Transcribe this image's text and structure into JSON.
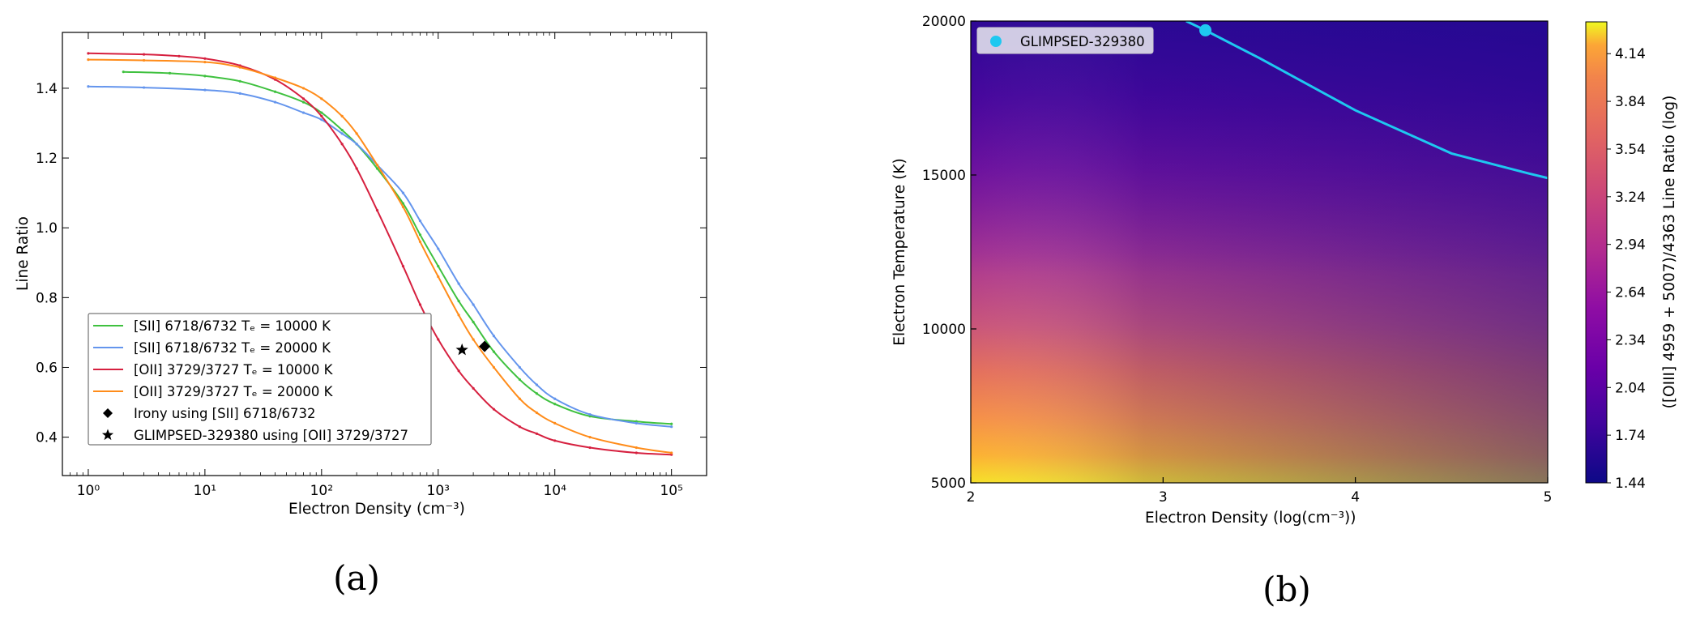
{
  "chart_data": [
    {
      "type": "line",
      "panel_label": "(a)",
      "xlabel": "Electron Density (cm⁻³)",
      "ylabel": "Line Ratio",
      "xscale": "log",
      "xlim": [
        0.6,
        200000
      ],
      "ylim": [
        0.29,
        1.56
      ],
      "x_ticks": [
        1,
        10,
        100,
        1000,
        10000,
        100000
      ],
      "x_tick_labels": [
        "10⁰",
        "10¹",
        "10²",
        "10³",
        "10⁴",
        "10⁵"
      ],
      "y_ticks": [
        0.4,
        0.6,
        0.8,
        1.0,
        1.2,
        1.4
      ],
      "y_tick_labels": [
        "0.4",
        "0.6",
        "0.8",
        "1.0",
        "1.2",
        "1.4"
      ],
      "legend_position": "lower-left",
      "series": [
        {
          "name": "[SII] 6718/6732 Tₑ = 10000 K",
          "color": "#3fc13f",
          "x": [
            2,
            5,
            10,
            20,
            40,
            70,
            100,
            150,
            200,
            300,
            500,
            700,
            1000,
            1500,
            2000,
            3000,
            5000,
            7000,
            10000,
            20000,
            50000,
            100000
          ],
          "y": [
            1.447,
            1.443,
            1.435,
            1.42,
            1.39,
            1.36,
            1.33,
            1.28,
            1.24,
            1.17,
            1.07,
            0.98,
            0.89,
            0.79,
            0.73,
            0.645,
            0.565,
            0.525,
            0.495,
            0.46,
            0.445,
            0.438
          ]
        },
        {
          "name": "[SII] 6718/6732 Tₑ = 20000 K",
          "color": "#6495ed",
          "x": [
            1,
            3,
            10,
            20,
            40,
            70,
            100,
            150,
            200,
            300,
            500,
            700,
            1000,
            1500,
            2000,
            3000,
            5000,
            7000,
            10000,
            20000,
            50000,
            100000
          ],
          "y": [
            1.405,
            1.402,
            1.395,
            1.385,
            1.36,
            1.33,
            1.31,
            1.27,
            1.24,
            1.18,
            1.1,
            1.02,
            0.94,
            0.84,
            0.78,
            0.69,
            0.6,
            0.55,
            0.51,
            0.465,
            0.44,
            0.43
          ]
        },
        {
          "name": "[OII] 3729/3727 Tₑ = 10000 K",
          "color": "#d6203f",
          "x": [
            1,
            3,
            6,
            10,
            20,
            40,
            70,
            100,
            150,
            200,
            300,
            500,
            700,
            1000,
            1500,
            2000,
            3000,
            5000,
            7000,
            10000,
            20000,
            50000,
            100000
          ],
          "y": [
            1.5,
            1.497,
            1.492,
            1.485,
            1.465,
            1.425,
            1.37,
            1.32,
            1.24,
            1.17,
            1.05,
            0.89,
            0.78,
            0.68,
            0.59,
            0.54,
            0.48,
            0.43,
            0.41,
            0.39,
            0.37,
            0.355,
            0.35
          ]
        },
        {
          "name": "[OII] 3729/3727 Tₑ = 20000 K",
          "color": "#ff8c1a",
          "x": [
            1,
            3,
            10,
            20,
            40,
            70,
            100,
            150,
            200,
            300,
            500,
            700,
            1000,
            1500,
            2000,
            3000,
            5000,
            7000,
            10000,
            20000,
            50000,
            100000
          ],
          "y": [
            1.482,
            1.48,
            1.475,
            1.46,
            1.43,
            1.4,
            1.37,
            1.32,
            1.27,
            1.18,
            1.06,
            0.96,
            0.86,
            0.75,
            0.68,
            0.6,
            0.51,
            0.47,
            0.44,
            0.4,
            0.37,
            0.355
          ]
        }
      ],
      "markers": [
        {
          "name": "Irony using [SII] 6718/6732",
          "symbol": "diamond",
          "x": 2500,
          "y": 0.66,
          "color": "#000000"
        },
        {
          "name": "GLIMPSED-329380 using [OII] 3729/3727",
          "symbol": "star",
          "x": 1600,
          "y": 0.65,
          "color": "#000000"
        }
      ]
    },
    {
      "type": "heatmap",
      "panel_label": "(b)",
      "xlabel": "Electron Density (log(cm⁻³))",
      "ylabel": "Electron Temperature (K)",
      "colorbar_label": "([OIII] 4959 + 5007)/4363 Line Ratio (log)",
      "colormap": "plasma",
      "xlim": [
        2,
        5
      ],
      "ylim": [
        5000,
        20000
      ],
      "x_ticks": [
        2,
        3,
        4,
        5
      ],
      "x_tick_labels": [
        "2",
        "3",
        "4",
        "5"
      ],
      "y_ticks": [
        5000,
        10000,
        15000,
        20000
      ],
      "y_tick_labels": [
        "5000",
        "10000",
        "15000",
        "20000"
      ],
      "colorbar_range": [
        1.44,
        4.34
      ],
      "colorbar_ticks": [
        1.44,
        1.74,
        2.04,
        2.34,
        2.64,
        2.94,
        3.24,
        3.54,
        3.84,
        4.14
      ],
      "colorbar_tick_labels": [
        "1.44",
        "1.74",
        "2.04",
        "2.34",
        "2.64",
        "2.94",
        "3.24",
        "3.54",
        "3.84",
        "4.14"
      ],
      "contour": {
        "name": "GLIMPSED-329380",
        "color": "#1ec8f0",
        "x": [
          3.12,
          3.22,
          3.5,
          4.0,
          4.5,
          4.9,
          5.0
        ],
        "y": [
          20000,
          19700,
          18800,
          17100,
          15700,
          15050,
          14900
        ]
      },
      "marker": {
        "name": "GLIMPSED-329380",
        "symbol": "circle",
        "x": 3.22,
        "y": 19700,
        "color": "#1ec8f0"
      },
      "legend_position": "top-left"
    }
  ]
}
